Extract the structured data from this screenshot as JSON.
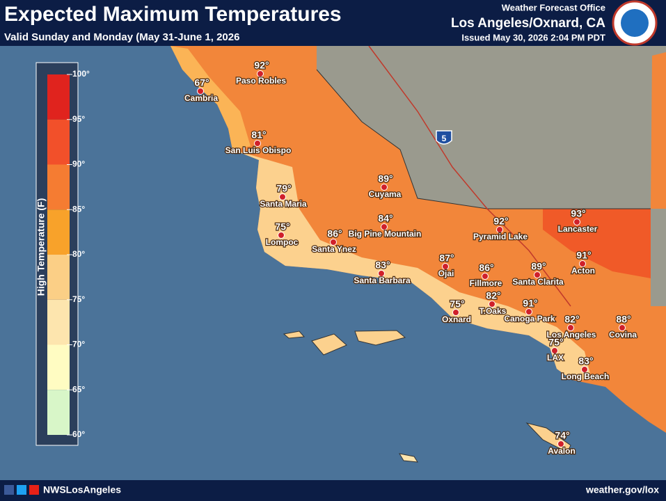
{
  "header": {
    "title": "Expected Maximum Temperatures",
    "subtitle": "Valid Sunday and Monday (May 31-June 1, 2026",
    "office_line": "Weather Forecast Office",
    "office": "Los Angeles/Oxnard, CA",
    "issued": "Issued May 30, 2026 2:04 PM PDT"
  },
  "legend": {
    "title": "High Temperature (F)",
    "ticks": [
      "100°",
      "95°",
      "90°",
      "85°",
      "80°",
      "75°",
      "70°",
      "65°",
      "60°"
    ],
    "bands": [
      "#e0231e",
      "#f2502a",
      "#f57c32",
      "#f8a22a",
      "#fbcf86",
      "#fde5ae",
      "#fffcc2",
      "#d8f6c8"
    ]
  },
  "highway": "5",
  "cities": [
    {
      "name": "Paso Robles",
      "temp": "92°"
    },
    {
      "name": "Cambria",
      "temp": "67°"
    },
    {
      "name": "San Luis Obispo",
      "temp": "81°"
    },
    {
      "name": "Santa Maria",
      "temp": "79°"
    },
    {
      "name": "Cuyama",
      "temp": "89°"
    },
    {
      "name": "Lompoc",
      "temp": "75°"
    },
    {
      "name": "Santa Ynez",
      "temp": "86°"
    },
    {
      "name": "Big Pine Mountain",
      "temp": "84°"
    },
    {
      "name": "Santa Barbara",
      "temp": "83°"
    },
    {
      "name": "Ojai",
      "temp": "87°"
    },
    {
      "name": "Pyramid Lake",
      "temp": "92°"
    },
    {
      "name": "Lancaster",
      "temp": "93°"
    },
    {
      "name": "Fillmore",
      "temp": "86°"
    },
    {
      "name": "Santa Clarita",
      "temp": "89°"
    },
    {
      "name": "Acton",
      "temp": "91°"
    },
    {
      "name": "Oxnard",
      "temp": "75°"
    },
    {
      "name": "T.Oaks",
      "temp": "82°"
    },
    {
      "name": "Canoga Park",
      "temp": "91°"
    },
    {
      "name": "Los Angeles",
      "temp": "82°"
    },
    {
      "name": "Covina",
      "temp": "88°"
    },
    {
      "name": "LAX",
      "temp": "75°"
    },
    {
      "name": "Long Beach",
      "temp": "83°"
    },
    {
      "name": "Avalon",
      "temp": "74°"
    }
  ],
  "footer": {
    "handle": "NWSLosAngeles",
    "url": "weather.gov/lox"
  }
}
